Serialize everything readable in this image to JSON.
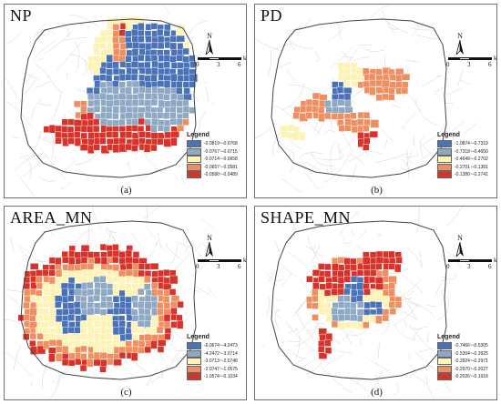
{
  "scale": {
    "ticks": [
      "0",
      "3",
      "6"
    ],
    "unit": "km"
  },
  "north_label": "N",
  "legend_title": "Legend",
  "colors": {
    "class1": "#4a72b8",
    "class2": "#8fa9c5",
    "class3": "#fcf3b4",
    "class4": "#f08e60",
    "class5": "#d9322a",
    "roads": "#d4d4d4",
    "boundary": "#444444"
  },
  "icons": {
    "north_arrow": "north-arrow-icon"
  },
  "panels": [
    {
      "id": "a",
      "title": "NP",
      "sublabel": "(a)",
      "legend": [
        "-0.0819~-0.0768",
        "-0.0767~-0.0715",
        "-0.0714~-0.0658",
        "-0.0657~-0.0581",
        "-0.0580~-0.0489"
      ]
    },
    {
      "id": "b",
      "title": "PD",
      "sublabel": "(b)",
      "legend": [
        "-1.0874~-0.7319",
        "-0.7318~-0.4650",
        "-0.4649~-0.2702",
        "-0.2701~-0.1381",
        "-0.1380~-0.2741"
      ]
    },
    {
      "id": "c",
      "title": "AREA_MN",
      "sublabel": "(c)",
      "legend": [
        "-6.0674~-4.2473",
        "-4.2472~-3.0714",
        "-3.0713~-2.0748",
        "-2.0747~-1.0575",
        "-1.0574~-0.1034"
      ]
    },
    {
      "id": "d",
      "title": "SHAPE_MN",
      "sublabel": "(d)",
      "legend": [
        "-0.7466~-0.5305",
        "-0.5304~-0.3925",
        "-0.3924~-0.2971",
        "-0.2970~-0.2027",
        "-0.2026~-0.1918"
      ]
    }
  ]
}
